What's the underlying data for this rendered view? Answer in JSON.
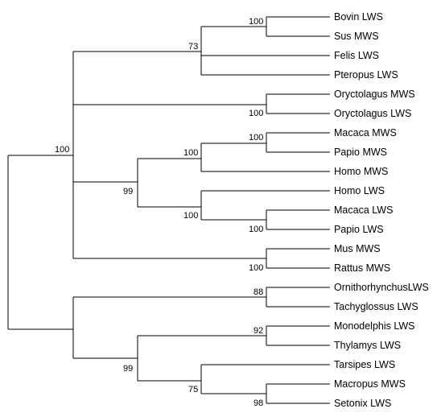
{
  "taxa": [
    "Bovin LWS",
    "Sus MWS",
    "Felis LWS",
    "Pteropus LWS",
    "Oryctolagus MWS",
    "Oryctolagus LWS",
    "Macaca MWS",
    "Papio MWS",
    "Homo MWS",
    "Homo LWS",
    "Macaca LWS",
    "Papio LWS",
    "Mus MWS",
    "Rattus MWS",
    "OrnithorhynchusLWS",
    "Tachyglossus LWS",
    "Monodelphis LWS",
    "Thylamys LWS",
    "Tarsipes LWS",
    "Macropus MWS",
    "Setonix LWS"
  ],
  "support_values": {
    "bovin_sus": "100",
    "laurasiatheria": "73",
    "oryctolagus": "100",
    "eutheria": "100",
    "macaca_papio_mws": "100",
    "primate_mws": "100",
    "primates": "99",
    "macaca_papio_lws": "100",
    "primate_lws": "100",
    "mus_rattus": "100",
    "monotremes": "88",
    "monodelphis_thylamys": "92",
    "marsupials": "99",
    "macropus_setonix": "98",
    "australidelphia": "75"
  }
}
